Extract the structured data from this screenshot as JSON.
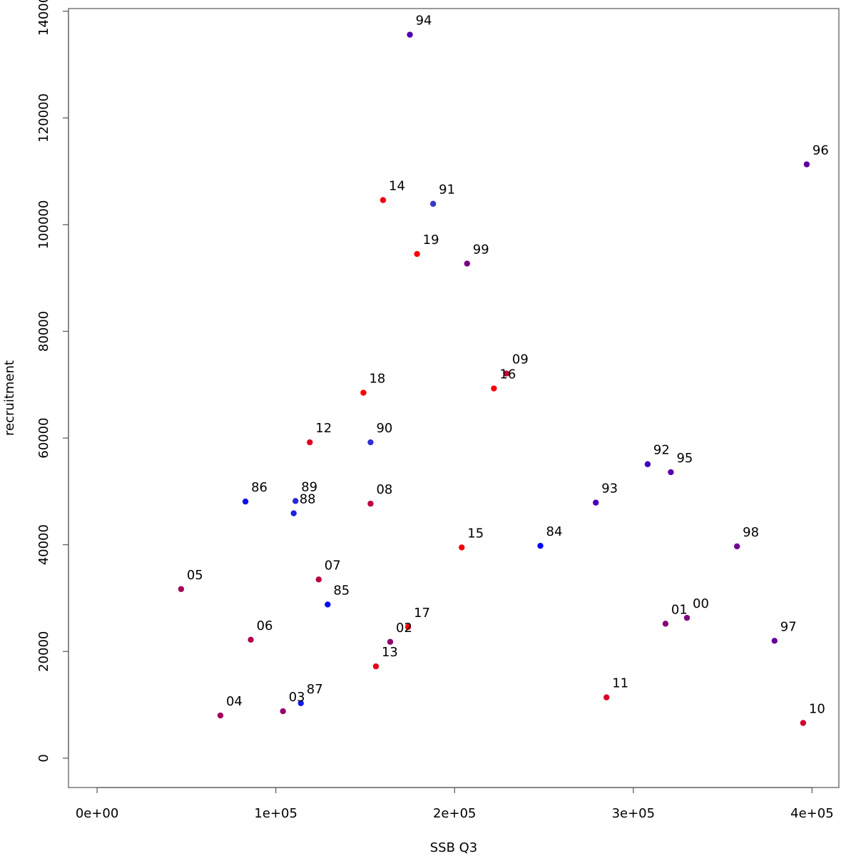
{
  "chart_data": {
    "type": "scatter",
    "title": "",
    "xlabel": "SSB Q3",
    "ylabel": "recruitment",
    "xlim": [
      -16000,
      415000
    ],
    "ylim": [
      -5500,
      140500
    ],
    "grid": false,
    "x_ticks": [
      {
        "value": 0,
        "label": "0e+00"
      },
      {
        "value": 100000,
        "label": "1e+05"
      },
      {
        "value": 200000,
        "label": "2e+05"
      },
      {
        "value": 300000,
        "label": "3e+05"
      },
      {
        "value": 400000,
        "label": "4e+05"
      }
    ],
    "y_ticks": [
      {
        "value": 0,
        "label": "0"
      },
      {
        "value": 20000,
        "label": "20000"
      },
      {
        "value": 40000,
        "label": "40000"
      },
      {
        "value": 60000,
        "label": "60000"
      },
      {
        "value": 80000,
        "label": "80000"
      },
      {
        "value": 100000,
        "label": "100000"
      },
      {
        "value": 120000,
        "label": "120000"
      },
      {
        "value": 140000,
        "label": "140000"
      }
    ],
    "points": [
      {
        "label": "84",
        "x": 248000,
        "y": 39800,
        "color": "#0000ff"
      },
      {
        "label": "85",
        "x": 129000,
        "y": 28800,
        "color": "#0808f7"
      },
      {
        "label": "86",
        "x": 83000,
        "y": 48100,
        "color": "#1010ef"
      },
      {
        "label": "87",
        "x": 114000,
        "y": 10300,
        "color": "#1818e7"
      },
      {
        "label": "88",
        "x": 110000,
        "y": 45900,
        "color": "#2020df"
      },
      {
        "label": "89",
        "x": 111000,
        "y": 48200,
        "color": "#2828d7"
      },
      {
        "label": "90",
        "x": 153000,
        "y": 59200,
        "color": "#3030cf"
      },
      {
        "label": "91",
        "x": 188000,
        "y": 103900,
        "color": "#3838c7"
      },
      {
        "label": "92",
        "x": 308000,
        "y": 55100,
        "color": "#4000bf"
      },
      {
        "label": "93",
        "x": 279000,
        "y": 47900,
        "color": "#4800b7"
      },
      {
        "label": "94",
        "x": 175000,
        "y": 135600,
        "color": "#5000af"
      },
      {
        "label": "95",
        "x": 321000,
        "y": 53600,
        "color": "#5800a7"
      },
      {
        "label": "96",
        "x": 397000,
        "y": 111300,
        "color": "#60009f"
      },
      {
        "label": "97",
        "x": 379000,
        "y": 22000,
        "color": "#680097"
      },
      {
        "label": "98",
        "x": 358000,
        "y": 39700,
        "color": "#70008f"
      },
      {
        "label": "99",
        "x": 207000,
        "y": 92700,
        "color": "#780087"
      },
      {
        "label": "00",
        "x": 330000,
        "y": 26300,
        "color": "#80007f"
      },
      {
        "label": "01",
        "x": 318000,
        "y": 25200,
        "color": "#880077"
      },
      {
        "label": "02",
        "x": 164000,
        "y": 21800,
        "color": "#90006f"
      },
      {
        "label": "03",
        "x": 104000,
        "y": 8800,
        "color": "#980067"
      },
      {
        "label": "04",
        "x": 69000,
        "y": 8000,
        "color": "#a0005f"
      },
      {
        "label": "05",
        "x": 47000,
        "y": 31700,
        "color": "#a80057"
      },
      {
        "label": "06",
        "x": 86000,
        "y": 22200,
        "color": "#b0004f"
      },
      {
        "label": "07",
        "x": 124000,
        "y": 33500,
        "color": "#b80047"
      },
      {
        "label": "08",
        "x": 153000,
        "y": 47700,
        "color": "#c0003f"
      },
      {
        "label": "09",
        "x": 229000,
        "y": 72100,
        "color": "#c80037"
      },
      {
        "label": "10",
        "x": 395000,
        "y": 6600,
        "color": "#d0002f"
      },
      {
        "label": "11",
        "x": 285000,
        "y": 11400,
        "color": "#d80027"
      },
      {
        "label": "12",
        "x": 119000,
        "y": 59200,
        "color": "#e0001f"
      },
      {
        "label": "13",
        "x": 156000,
        "y": 17200,
        "color": "#e80017"
      },
      {
        "label": "14",
        "x": 160000,
        "y": 104600,
        "color": "#f0000f"
      },
      {
        "label": "15",
        "x": 204000,
        "y": 39500,
        "color": "#f40008"
      },
      {
        "label": "16",
        "x": 222000,
        "y": 69300,
        "color": "#f80004"
      },
      {
        "label": "17",
        "x": 174000,
        "y": 24600,
        "color": "#fa0002"
      },
      {
        "label": "18",
        "x": 149000,
        "y": 68500,
        "color": "#fc0001"
      },
      {
        "label": "19",
        "x": 179000,
        "y": 94500,
        "color": "#ff0000"
      }
    ]
  }
}
